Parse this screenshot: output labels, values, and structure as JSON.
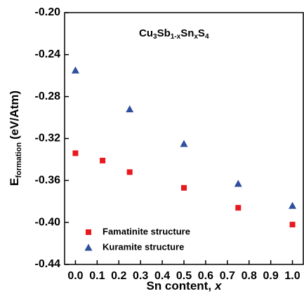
{
  "chart_data": {
    "type": "scatter",
    "annotation": [
      [
        "Cu",
        "3"
      ],
      [
        "Sb",
        "1-x"
      ],
      [
        "Sn",
        "x"
      ],
      [
        "S",
        "4"
      ]
    ],
    "x_label": [
      "Sn content,",
      "x"
    ],
    "y_label": [
      "E",
      "formation",
      "(eV/Atm)"
    ],
    "xlim": [
      -0.05,
      1.05
    ],
    "ylim": [
      -0.44,
      -0.2
    ],
    "xticks": [
      {
        "value": 0,
        "label": "0.0"
      },
      {
        "value": 0.1,
        "label": "0.1"
      },
      {
        "value": 0.2,
        "label": "0.2"
      },
      {
        "value": 0.3,
        "label": "0.3"
      },
      {
        "value": 0.4,
        "label": "0.4"
      },
      {
        "value": 0.5,
        "label": "0.5"
      },
      {
        "value": 0.6,
        "label": "0.6"
      },
      {
        "value": 0.7,
        "label": "0.7"
      },
      {
        "value": 0.8,
        "label": "0.8"
      },
      {
        "value": 0.9,
        "label": "0.9"
      },
      {
        "value": 1,
        "label": "1.0"
      }
    ],
    "yticks": [
      {
        "value": -0.44,
        "label": "-0.44"
      },
      {
        "value": -0.4,
        "label": "-0.40"
      },
      {
        "value": -0.36,
        "label": "-0.36"
      },
      {
        "value": -0.32,
        "label": "-0.32"
      },
      {
        "value": -0.28,
        "label": "-0.28"
      },
      {
        "value": -0.24,
        "label": "-0.24"
      },
      {
        "value": -0.2,
        "label": "-0.20"
      }
    ],
    "legend": "lower left",
    "series": [
      {
        "name": "Famatinite structure",
        "color": "#e8191e",
        "marker": "square",
        "x": [
          0,
          0.125,
          0.25,
          0.5,
          0.75,
          1.0
        ],
        "values": [
          -0.334,
          -0.341,
          -0.352,
          -0.367,
          -0.386,
          -0.402
        ]
      },
      {
        "name": "Kuramite structure",
        "color": "#2e4f9c",
        "marker": "triangle",
        "x": [
          0,
          0.25,
          0.5,
          0.75,
          1.0
        ],
        "values": [
          -0.255,
          -0.292,
          -0.325,
          -0.363,
          -0.384
        ]
      }
    ]
  }
}
